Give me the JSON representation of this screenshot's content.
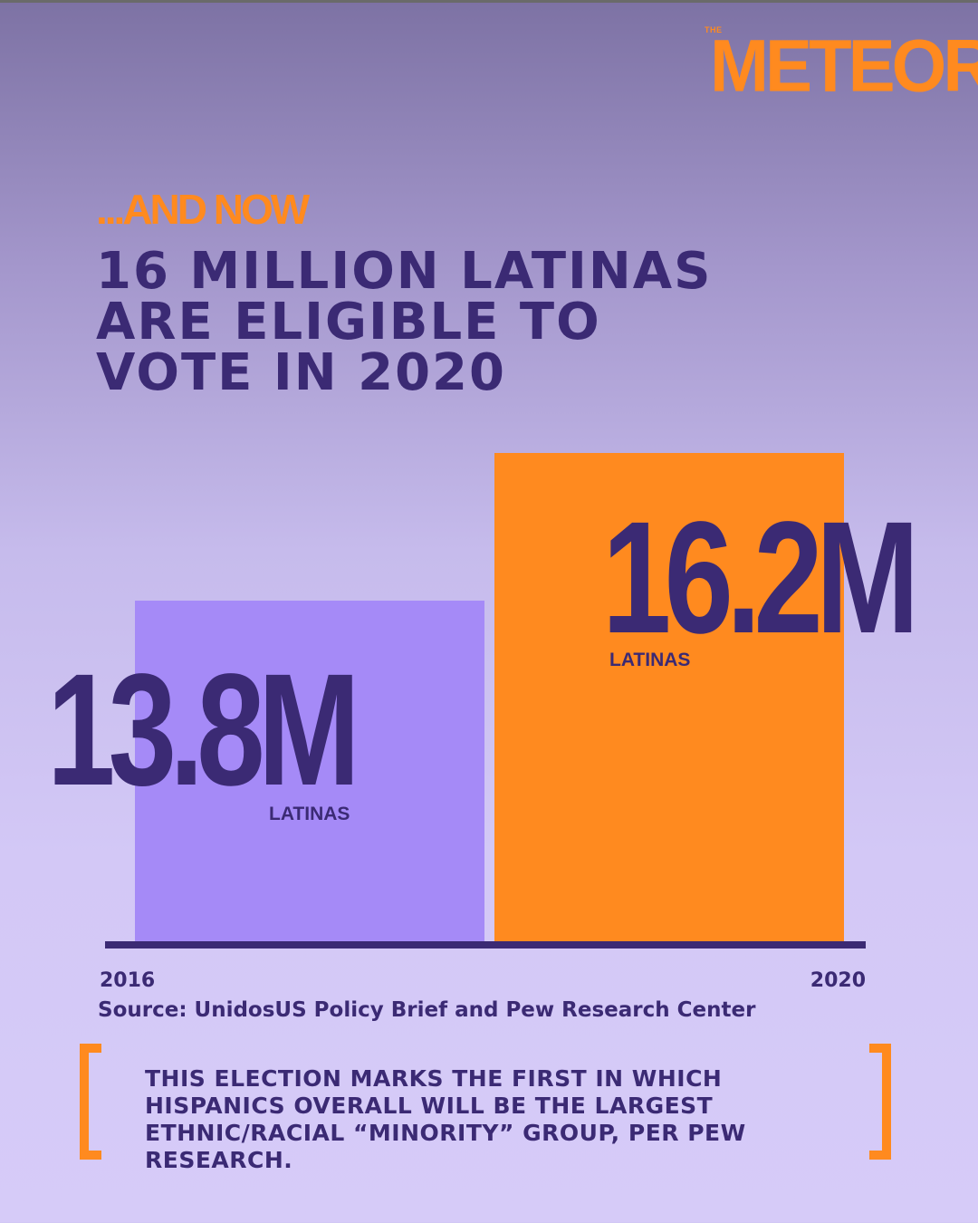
{
  "brand": {
    "small": "THE",
    "name": "METEOR"
  },
  "kicker": "...AND NOW",
  "headline": {
    "line1": "16 MILLION LATINAS",
    "line2": "ARE ELIGIBLE TO",
    "line3": "VOTE IN 2020"
  },
  "colors": {
    "accent_orange": "#ff8a1f",
    "bar_purple": "#a58af7",
    "text_dark": "#3b2a74"
  },
  "chart_data": {
    "type": "bar",
    "categories": [
      "2016",
      "2020"
    ],
    "values": [
      13.8,
      16.2
    ],
    "value_labels": [
      "13.8M",
      "16.2M"
    ],
    "sublabels": [
      "LATINAS",
      "LATINAS"
    ],
    "bar_colors": [
      "#a58af7",
      "#ff8a1f"
    ],
    "unit": "M",
    "grid": false
  },
  "source": "Source: UnidosUS Policy Brief and Pew Research Center",
  "note": "THIS ELECTION MARKS THE FIRST IN WHICH HISPANICS OVERALL WILL BE THE LARGEST ETHNIC/RACIAL “MINORITY” GROUP, PER PEW RESEARCH."
}
